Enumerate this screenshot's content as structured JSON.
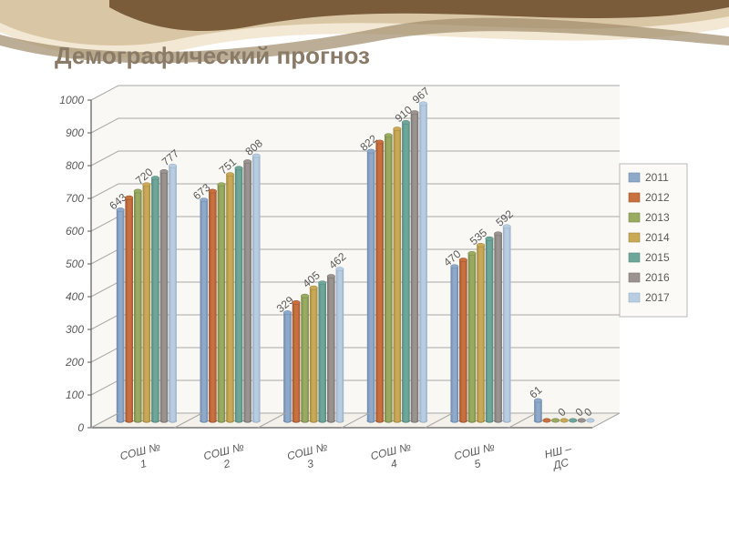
{
  "title": {
    "text": "Демографический прогноз",
    "color": "#8a7b68",
    "fontsize": 26,
    "fontweight": "bold"
  },
  "swoosh": {
    "colors": [
      "#7a5c3a",
      "#d9c6a5",
      "#f2e8d3",
      "#a08c6a"
    ]
  },
  "chart": {
    "type": "3d-cylinder-bar",
    "background_color": "#ffffff",
    "floor_color": "#f3f1ea",
    "wall_color": "#f9f8f4",
    "grid_color": "#a8a8a8",
    "axis_color": "#5a5a5a",
    "label_fontsize": 12,
    "value_label_fontsize": 12,
    "y_axis": {
      "min": 0,
      "max": 1000,
      "step": 100,
      "ticks": [
        0,
        100,
        200,
        300,
        400,
        500,
        600,
        700,
        800,
        900,
        1000
      ]
    },
    "categories": [
      "СОШ № 1",
      "СОШ № 2",
      "СОШ № 3",
      "СОШ № 4",
      "СОШ № 5",
      "НШ – ДС"
    ],
    "series": [
      {
        "name": "2011",
        "color": "#8fa9c9",
        "shadow": "#6a87aa"
      },
      {
        "name": "2012",
        "color": "#c9703f",
        "shadow": "#9a5330"
      },
      {
        "name": "2013",
        "color": "#9aab61",
        "shadow": "#76854a"
      },
      {
        "name": "2014",
        "color": "#c9a956",
        "shadow": "#a08641"
      },
      {
        "name": "2015",
        "color": "#6ea79a",
        "shadow": "#54857a"
      },
      {
        "name": "2016",
        "color": "#9a9390",
        "shadow": "#78726f"
      },
      {
        "name": "2017",
        "color": "#b9cde2",
        "shadow": "#95adc5"
      }
    ],
    "data": [
      [
        643,
        680,
        700,
        720,
        740,
        760,
        777
      ],
      [
        673,
        700,
        720,
        751,
        770,
        790,
        808
      ],
      [
        329,
        360,
        380,
        405,
        420,
        440,
        462
      ],
      [
        822,
        850,
        870,
        890,
        910,
        940,
        967
      ],
      [
        470,
        490,
        510,
        535,
        555,
        570,
        592
      ],
      [
        61,
        0,
        0,
        0,
        0,
        0,
        0
      ]
    ],
    "value_labels": [
      [
        "643",
        null,
        null,
        "720",
        null,
        null,
        "777"
      ],
      [
        "673",
        null,
        null,
        "751",
        null,
        null,
        "808"
      ],
      [
        "329",
        null,
        null,
        "405",
        null,
        null,
        "462"
      ],
      [
        "822",
        null,
        null,
        null,
        "910",
        null,
        "967"
      ],
      [
        "470",
        null,
        null,
        "535",
        null,
        null,
        "592"
      ],
      [
        "61",
        null,
        null,
        "0",
        null,
        "0",
        "0"
      ]
    ],
    "legend": {
      "position": "right",
      "fontsize": 12,
      "text_color": "#5a5a5a",
      "box_border": "#b8b8b8",
      "box_fill": "#fbfaf6"
    }
  }
}
